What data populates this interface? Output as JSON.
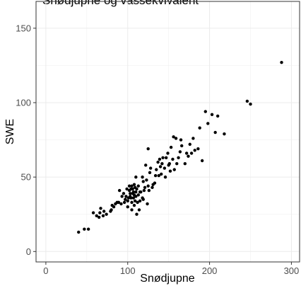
{
  "title": "Snødjupne og vassekvivalent",
  "chart_data": {
    "type": "scatter",
    "xlabel": "Snødjupne",
    "ylabel": "SWE",
    "xlim": [
      -12,
      310
    ],
    "ylim": [
      -7,
      168
    ],
    "x_ticks": [
      0,
      100,
      200,
      300
    ],
    "y_ticks": [
      0,
      50,
      100,
      150
    ],
    "x_tick_labels": [
      "0",
      "100",
      "200",
      "300"
    ],
    "y_tick_labels": [
      "0",
      "50",
      "100",
      "150"
    ],
    "grid": true,
    "point_color": "#000000",
    "points": [
      [
        40,
        13
      ],
      [
        47,
        15
      ],
      [
        52,
        15
      ],
      [
        58,
        26
      ],
      [
        62,
        24
      ],
      [
        65,
        23
      ],
      [
        66,
        26
      ],
      [
        67,
        29
      ],
      [
        70,
        24
      ],
      [
        71,
        27
      ],
      [
        74,
        25
      ],
      [
        79,
        27
      ],
      [
        80,
        28
      ],
      [
        81,
        31
      ],
      [
        83,
        30
      ],
      [
        85,
        32
      ],
      [
        87,
        33
      ],
      [
        89,
        33
      ],
      [
        90,
        41
      ],
      [
        92,
        32
      ],
      [
        93,
        37
      ],
      [
        95,
        39
      ],
      [
        96,
        33
      ],
      [
        97,
        35
      ],
      [
        98,
        37
      ],
      [
        99,
        42
      ],
      [
        100,
        30
      ],
      [
        100,
        34
      ],
      [
        101,
        36
      ],
      [
        102,
        41
      ],
      [
        102,
        44
      ],
      [
        103,
        37
      ],
      [
        103,
        39
      ],
      [
        104,
        36
      ],
      [
        104,
        42
      ],
      [
        105,
        28
      ],
      [
        105,
        33
      ],
      [
        105,
        44
      ],
      [
        106,
        39
      ],
      [
        106,
        42
      ],
      [
        107,
        36
      ],
      [
        107,
        40
      ],
      [
        108,
        31
      ],
      [
        108,
        38
      ],
      [
        108,
        45
      ],
      [
        109,
        34
      ],
      [
        109,
        43
      ],
      [
        110,
        37
      ],
      [
        110,
        40
      ],
      [
        110,
        50
      ],
      [
        111,
        25
      ],
      [
        111,
        42
      ],
      [
        112,
        33
      ],
      [
        113,
        38
      ],
      [
        113,
        44
      ],
      [
        114,
        28
      ],
      [
        115,
        34
      ],
      [
        115,
        40
      ],
      [
        116,
        40
      ],
      [
        118,
        36
      ],
      [
        118,
        50
      ],
      [
        119,
        35
      ],
      [
        119,
        47
      ],
      [
        120,
        41
      ],
      [
        121,
        43
      ],
      [
        122,
        58
      ],
      [
        123,
        48
      ],
      [
        124,
        32
      ],
      [
        125,
        44
      ],
      [
        125,
        69
      ],
      [
        126,
        41
      ],
      [
        127,
        53
      ],
      [
        128,
        56
      ],
      [
        130,
        43
      ],
      [
        131,
        45
      ],
      [
        133,
        46
      ],
      [
        134,
        51
      ],
      [
        135,
        55
      ],
      [
        137,
        60
      ],
      [
        138,
        51
      ],
      [
        139,
        62
      ],
      [
        140,
        57
      ],
      [
        141,
        52
      ],
      [
        142,
        59
      ],
      [
        143,
        63
      ],
      [
        145,
        56
      ],
      [
        146,
        50
      ],
      [
        147,
        63
      ],
      [
        149,
        66
      ],
      [
        150,
        58
      ],
      [
        151,
        59
      ],
      [
        152,
        54
      ],
      [
        153,
        70
      ],
      [
        155,
        62
      ],
      [
        156,
        77
      ],
      [
        157,
        55
      ],
      [
        159,
        76
      ],
      [
        160,
        59
      ],
      [
        162,
        63
      ],
      [
        164,
        67
      ],
      [
        165,
        75
      ],
      [
        166,
        71
      ],
      [
        170,
        59
      ],
      [
        172,
        66
      ],
      [
        174,
        64
      ],
      [
        176,
        72
      ],
      [
        178,
        66
      ],
      [
        180,
        76
      ],
      [
        182,
        68
      ],
      [
        186,
        69
      ],
      [
        188,
        83
      ],
      [
        191,
        61
      ],
      [
        195,
        94
      ],
      [
        198,
        86
      ],
      [
        203,
        92
      ],
      [
        207,
        80
      ],
      [
        210,
        91
      ],
      [
        218,
        79
      ],
      [
        246,
        101
      ],
      [
        250,
        99
      ],
      [
        288,
        127
      ]
    ]
  }
}
